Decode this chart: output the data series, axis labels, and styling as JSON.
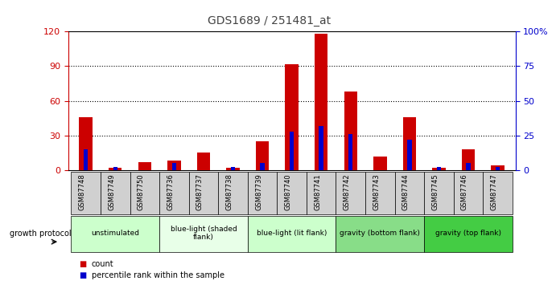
{
  "title": "GDS1689 / 251481_at",
  "samples": [
    "GSM87748",
    "GSM87749",
    "GSM87750",
    "GSM87736",
    "GSM87737",
    "GSM87738",
    "GSM87739",
    "GSM87740",
    "GSM87741",
    "GSM87742",
    "GSM87743",
    "GSM87744",
    "GSM87745",
    "GSM87746",
    "GSM87747"
  ],
  "count": [
    46,
    2,
    7,
    8,
    15,
    2,
    25,
    92,
    118,
    68,
    12,
    46,
    2,
    18,
    4
  ],
  "percentile": [
    15,
    2,
    0,
    5,
    0,
    2,
    5,
    28,
    32,
    26,
    0,
    22,
    2,
    5,
    2
  ],
  "groups": [
    {
      "label": "unstimulated",
      "start": 0,
      "end": 3,
      "color": "#ccffcc"
    },
    {
      "label": "blue-light (shaded\nflank)",
      "start": 3,
      "end": 6,
      "color": "#e8ffe8"
    },
    {
      "label": "blue-light (lit flank)",
      "start": 6,
      "end": 9,
      "color": "#ccffcc"
    },
    {
      "label": "gravity (bottom flank)",
      "start": 9,
      "end": 12,
      "color": "#88dd88"
    },
    {
      "label": "gravity (top flank)",
      "start": 12,
      "end": 15,
      "color": "#44cc44"
    }
  ],
  "ylim_left": [
    0,
    120
  ],
  "ylim_right": [
    0,
    100
  ],
  "yticks_left": [
    0,
    30,
    60,
    90,
    120
  ],
  "yticks_right": [
    0,
    25,
    50,
    75,
    100
  ],
  "bar_color_count": "#cc0000",
  "bar_color_pct": "#0000cc",
  "left_axis_color": "#cc0000",
  "right_axis_color": "#0000cc"
}
